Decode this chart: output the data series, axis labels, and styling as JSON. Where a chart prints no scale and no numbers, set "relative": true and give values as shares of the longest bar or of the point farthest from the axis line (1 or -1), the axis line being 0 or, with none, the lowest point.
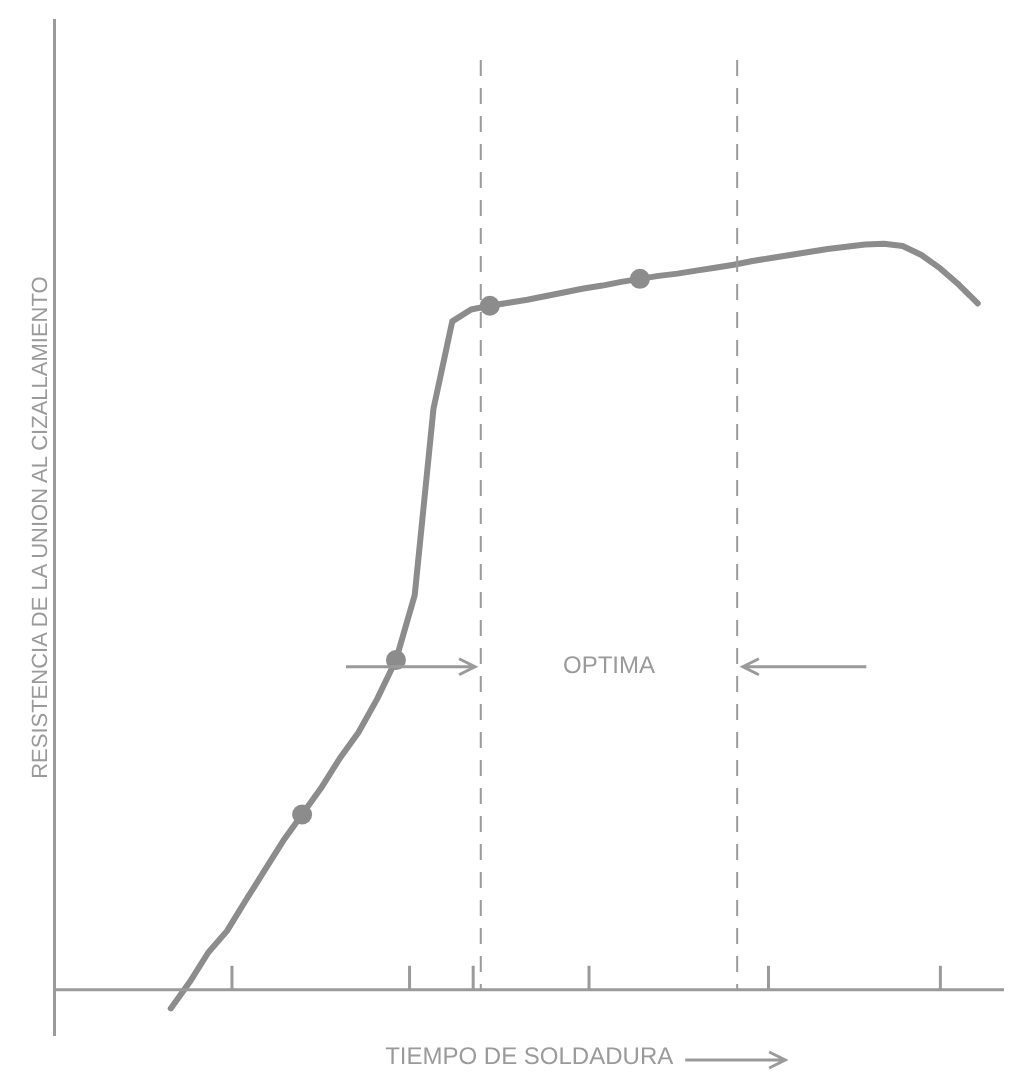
{
  "chart_data": {
    "type": "line",
    "relative": true,
    "ylabel": "RESISTENCIA DE LA UNION AL CIZALLAMIENTO",
    "xlabel": "TIEMPO DE SOLDADURA",
    "legend": false,
    "categories": [
      null,
      null,
      null,
      null,
      null,
      null,
      null,
      null,
      null,
      null,
      null,
      null,
      null,
      null,
      null,
      null,
      null,
      null,
      null,
      null,
      null,
      null,
      null,
      null,
      null,
      null,
      null,
      null,
      null,
      null,
      null,
      null,
      null,
      null,
      null,
      null,
      null,
      null,
      null,
      null,
      null,
      null,
      null,
      null
    ],
    "series": [
      {
        "type": "line",
        "color": "#8c8c8c",
        "marker": "none",
        "values": [
          -0.025,
          0.01,
          0.05,
          0.079,
          0.12,
          0.16,
          0.2,
          0.235,
          0.27,
          0.31,
          0.345,
          0.39,
          0.442,
          0.529,
          0.779,
          0.896,
          0.912,
          0.917,
          0.921,
          0.925,
          0.93,
          0.935,
          0.94,
          0.944,
          0.949,
          0.953,
          0.957,
          0.96,
          0.964,
          0.968,
          0.972,
          0.977,
          0.981,
          0.985,
          0.989,
          0.993,
          0.996,
          0.999,
          1.0,
          0.997,
          0.985,
          0.967,
          0.945,
          0.92
        ]
      }
    ],
    "annotations": [
      "OPTIMA"
    ]
  }
}
